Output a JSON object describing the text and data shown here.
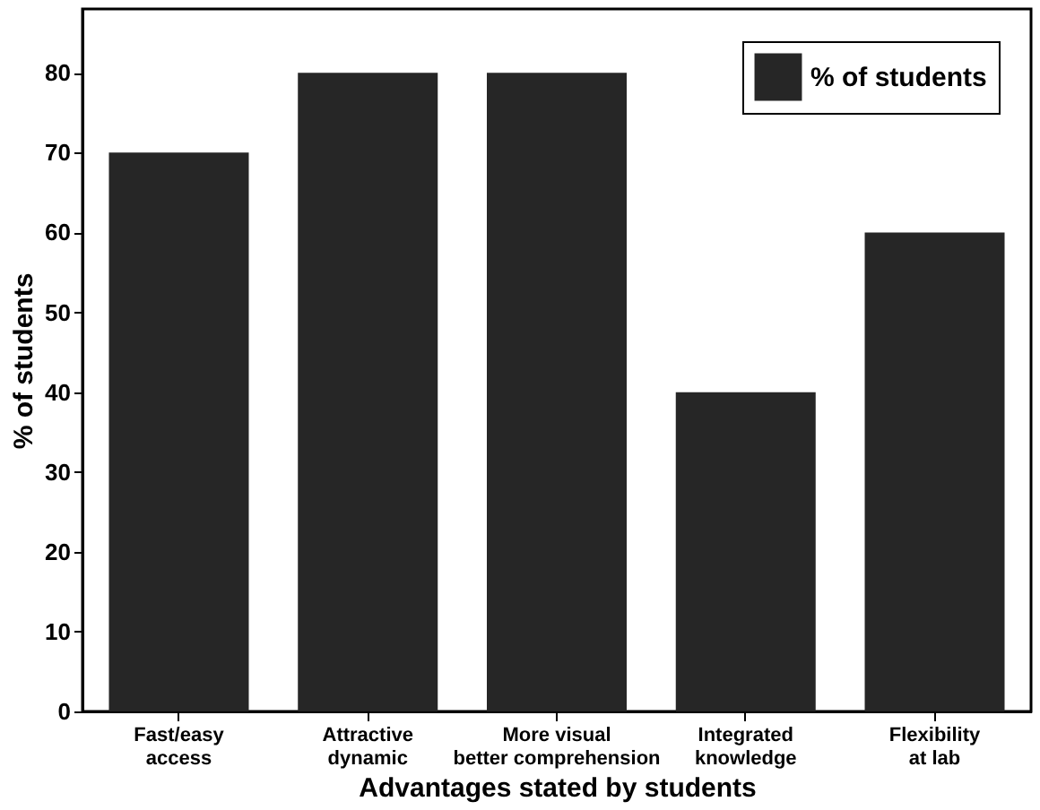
{
  "chart_data": {
    "type": "bar",
    "categories": [
      "Fast/easy\naccess",
      "Attractive\ndynamic",
      "More visual\nbetter comprehension",
      "Integrated\nknowledge",
      "Flexibility\nat lab"
    ],
    "series": [
      {
        "name": "% of students",
        "color": "#262626",
        "values": [
          70,
          80,
          80,
          40,
          60
        ]
      }
    ],
    "xlabel": "Advantages stated by students",
    "ylabel": "% of students",
    "ylim": [
      0,
      88
    ],
    "yticks": [
      0,
      10,
      20,
      30,
      40,
      50,
      60,
      70,
      80
    ],
    "grid": false,
    "legend": "top right"
  }
}
